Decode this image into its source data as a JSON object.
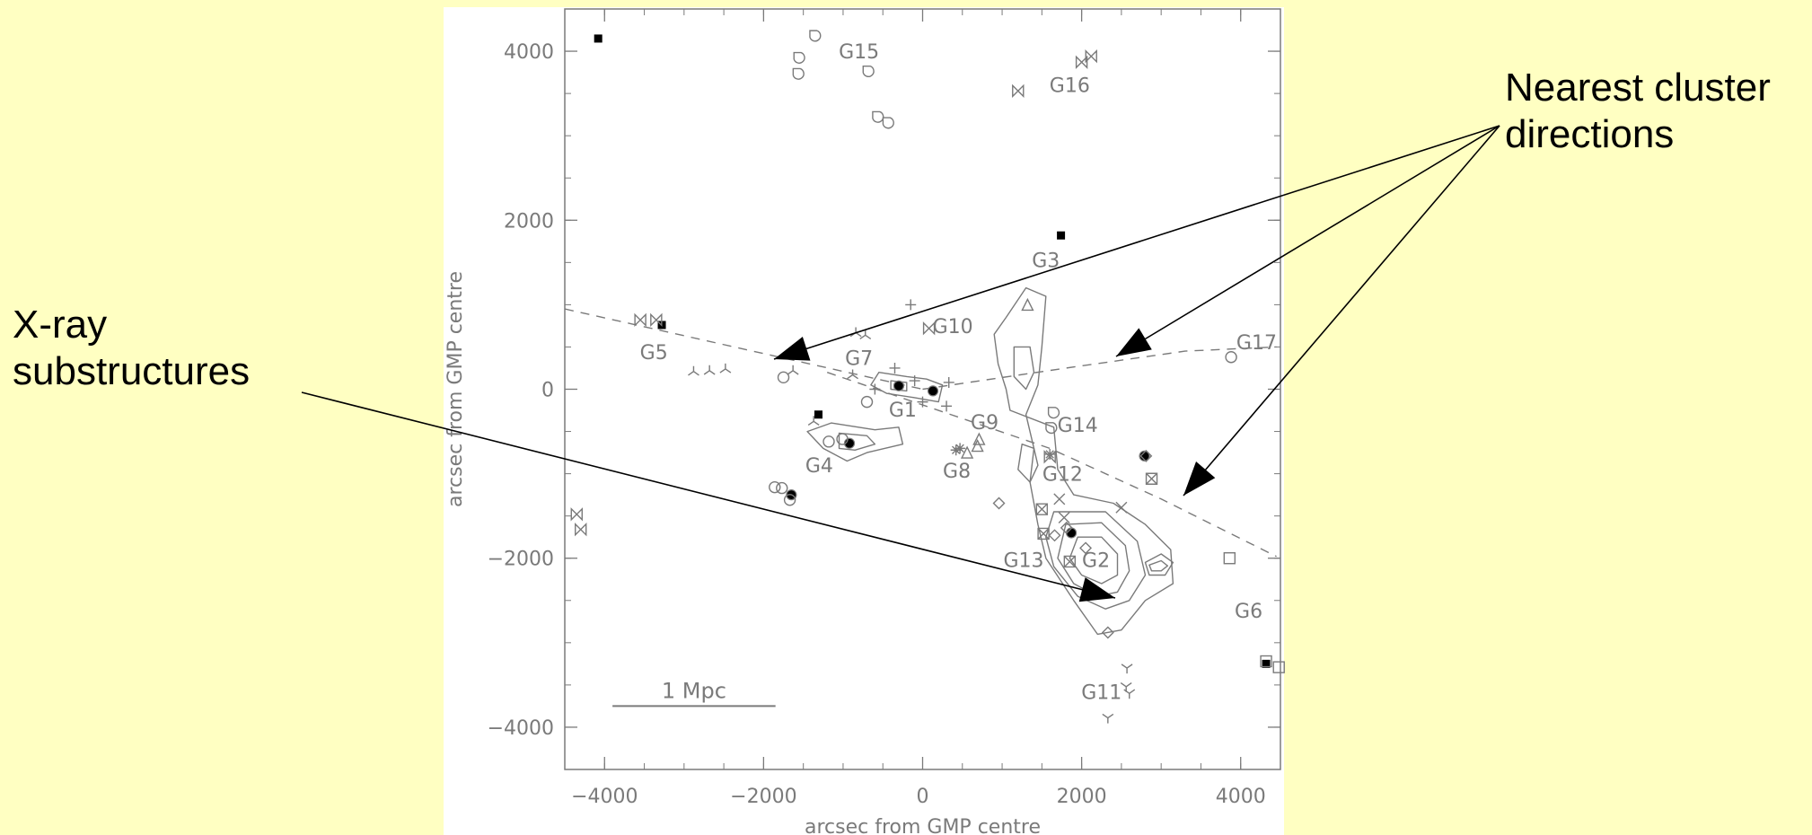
{
  "colors": {
    "background": "#ffffc2",
    "plot_bg": "#ffffff",
    "ink": "#7a7a7a",
    "arrow": "#000000"
  },
  "annotations": {
    "nearest_line1": "Nearest cluster",
    "nearest_line2": "directions",
    "xray_line1": "X-ray",
    "xray_line2": "substructures"
  },
  "chart_data": {
    "type": "scatter",
    "xlabel": "arcsec from GMP centre",
    "ylabel": "arcsec from GMP centre",
    "xlim": [
      -4500,
      4500
    ],
    "ylim": [
      -4500,
      4500
    ],
    "xticks": [
      -4000,
      -2000,
      0,
      2000,
      4000
    ],
    "yticks": [
      -4000,
      -2000,
      0,
      2000,
      4000
    ],
    "xticklabels": [
      "−4000",
      "−2000",
      "0",
      "2000",
      "4000"
    ],
    "yticklabels": [
      "−4000",
      "−2000",
      "0",
      "2000",
      "4000"
    ],
    "scale_bar": {
      "label": "1 Mpc",
      "x1": -3900,
      "x2": -1850,
      "y": -3750
    },
    "group_labels": [
      {
        "name": "G15",
        "x": -800,
        "y": 4000
      },
      {
        "name": "G16",
        "x": 1850,
        "y": 3600
      },
      {
        "name": "G3",
        "x": 1550,
        "y": 1530
      },
      {
        "name": "G10",
        "x": 380,
        "y": 750
      },
      {
        "name": "G17",
        "x": 4200,
        "y": 560
      },
      {
        "name": "G5",
        "x": -3380,
        "y": 440
      },
      {
        "name": "G7",
        "x": -800,
        "y": 370
      },
      {
        "name": "G1",
        "x": -250,
        "y": -240
      },
      {
        "name": "G9",
        "x": 780,
        "y": -390
      },
      {
        "name": "G14",
        "x": 1950,
        "y": -420
      },
      {
        "name": "G4",
        "x": -1300,
        "y": -900
      },
      {
        "name": "G8",
        "x": 430,
        "y": -960
      },
      {
        "name": "G12",
        "x": 1760,
        "y": -1000
      },
      {
        "name": "G13",
        "x": 1270,
        "y": -2020
      },
      {
        "name": "G2",
        "x": 2180,
        "y": -2020
      },
      {
        "name": "G6",
        "x": 4100,
        "y": -2620
      },
      {
        "name": "G11",
        "x": 2250,
        "y": -3580
      }
    ],
    "dashed_lines": [
      {
        "points": [
          [
            -4500,
            950
          ],
          [
            0,
            0
          ]
        ]
      },
      {
        "points": [
          [
            0,
            0
          ],
          [
            1800,
            250
          ],
          [
            3300,
            450
          ],
          [
            4450,
            500
          ]
        ]
      },
      {
        "points": [
          [
            -1200,
            200
          ],
          [
            1600,
            -700
          ],
          [
            3000,
            -1300
          ],
          [
            4450,
            -1980
          ]
        ]
      }
    ],
    "filled_squares": [
      [
        -4080,
        4150
      ],
      [
        -3280,
        760
      ],
      [
        -1310,
        -300
      ],
      [
        1740,
        1820
      ],
      [
        4320,
        -3250
      ]
    ],
    "filled_octagons": [
      [
        -300,
        40
      ],
      [
        130,
        -20
      ],
      [
        -920,
        -640
      ],
      [
        -1650,
        -1250
      ],
      [
        1870,
        -1700
      ],
      [
        2790,
        -790
      ]
    ],
    "open_circles": [
      [
        -1750,
        140
      ],
      [
        -700,
        -150
      ],
      [
        -1180,
        -620
      ],
      [
        -1010,
        -590
      ],
      [
        -1860,
        -1160
      ],
      [
        -1770,
        -1170
      ],
      [
        -1670,
        -1310
      ],
      [
        3880,
        380
      ]
    ],
    "plus": [
      [
        -350,
        250
      ],
      [
        -600,
        0
      ],
      [
        -100,
        100
      ],
      [
        300,
        -200
      ],
      [
        -150,
        1000
      ],
      [
        0,
        -150
      ],
      [
        330,
        80
      ]
    ],
    "tri_down": [
      [
        -1630,
        220
      ],
      [
        -2480,
        240
      ],
      [
        -2680,
        220
      ],
      [
        -2880,
        210
      ],
      [
        -840,
        670
      ],
      [
        -720,
        640
      ],
      [
        -880,
        170
      ],
      [
        -1370,
        -380
      ]
    ],
    "open_diamonds": [
      [
        960,
        -1350
      ],
      [
        1660,
        -1730
      ],
      [
        2050,
        -1880
      ],
      [
        2330,
        -2880
      ],
      [
        2810,
        -790
      ],
      [
        1810,
        -1640
      ]
    ],
    "bowties": [
      [
        -3550,
        820
      ],
      [
        -3350,
        820
      ],
      [
        1200,
        3530
      ],
      [
        2000,
        3870
      ],
      [
        2120,
        3940
      ],
      [
        -4350,
        -1480
      ],
      [
        -4300,
        -1660
      ],
      [
        80,
        720
      ],
      [
        1600,
        -800
      ]
    ],
    "x_marks": [
      [
        1720,
        -1300
      ],
      [
        1780,
        -1520
      ],
      [
        2500,
        -1400
      ]
    ],
    "open_triangles": [
      [
        1320,
        1000
      ],
      [
        710,
        -590
      ],
      [
        690,
        -670
      ],
      [
        560,
        -750
      ]
    ],
    "asterisks": [
      [
        470,
        -700
      ],
      [
        420,
        -720
      ],
      [
        1600,
        -770
      ]
    ],
    "boxed_x": [
      [
        1500,
        -1420
      ],
      [
        1520,
        -1710
      ],
      [
        1850,
        -2040
      ],
      [
        2880,
        -1060
      ]
    ],
    "open_squares": [
      [
        3860,
        -2000
      ],
      [
        4320,
        -3220
      ],
      [
        4480,
        -3290
      ]
    ],
    "teardrops": [
      [
        -1350,
        4180
      ],
      [
        -1550,
        3920
      ],
      [
        -1560,
        3730
      ],
      [
        -680,
        3760
      ],
      [
        -560,
        3220
      ],
      [
        -430,
        3150
      ],
      [
        1650,
        -280
      ],
      [
        1620,
        -460
      ]
    ],
    "tri_up": [
      [
        2570,
        -3300
      ],
      [
        2560,
        -3520
      ],
      [
        2600,
        -3600
      ],
      [
        2330,
        -3890
      ]
    ],
    "contours": [
      [
        [
          1050,
          850
        ],
        [
          1300,
          1200
        ],
        [
          1550,
          1100
        ],
        [
          1500,
          500
        ],
        [
          1450,
          50
        ],
        [
          1300,
          -300
        ],
        [
          1400,
          -700
        ],
        [
          1350,
          -1100
        ],
        [
          1450,
          -1600
        ],
        [
          1550,
          -2000
        ],
        [
          1900,
          -2500
        ],
        [
          2200,
          -2900
        ],
        [
          2500,
          -2850
        ],
        [
          2800,
          -2500
        ],
        [
          3150,
          -2300
        ],
        [
          3120,
          -1900
        ],
        [
          2800,
          -1600
        ],
        [
          2400,
          -1350
        ],
        [
          1900,
          -1250
        ],
        [
          1700,
          -950
        ],
        [
          1650,
          -450
        ],
        [
          1100,
          -250
        ],
        [
          1050,
          0
        ],
        [
          950,
          300
        ],
        [
          900,
          650
        ]
      ],
      [
        [
          1650,
          -1450
        ],
        [
          2300,
          -1450
        ],
        [
          2700,
          -1800
        ],
        [
          2800,
          -2200
        ],
        [
          2600,
          -2500
        ],
        [
          2300,
          -2600
        ],
        [
          1950,
          -2450
        ],
        [
          1650,
          -2100
        ],
        [
          1550,
          -1750
        ]
      ],
      [
        [
          1800,
          -1600
        ],
        [
          2250,
          -1580
        ],
        [
          2550,
          -1850
        ],
        [
          2600,
          -2150
        ],
        [
          2450,
          -2400
        ],
        [
          2200,
          -2450
        ],
        [
          1900,
          -2300
        ],
        [
          1700,
          -2000
        ]
      ],
      [
        [
          1950,
          -1750
        ],
        [
          2250,
          -1750
        ],
        [
          2450,
          -1950
        ],
        [
          2450,
          -2200
        ],
        [
          2250,
          -2300
        ],
        [
          2000,
          -2200
        ],
        [
          1850,
          -2000
        ]
      ],
      [
        [
          2800,
          -2050
        ],
        [
          3000,
          -1950
        ],
        [
          3150,
          -2050
        ],
        [
          3050,
          -2200
        ],
        [
          2850,
          -2200
        ]
      ],
      [
        [
          2850,
          -2080
        ],
        [
          3000,
          -2030
        ],
        [
          3080,
          -2090
        ],
        [
          3000,
          -2150
        ],
        [
          2880,
          -2150
        ]
      ],
      [
        [
          1150,
          500
        ],
        [
          1350,
          500
        ],
        [
          1400,
          200
        ],
        [
          1300,
          0
        ],
        [
          1150,
          150
        ]
      ],
      [
        [
          1250,
          -650
        ],
        [
          1400,
          -700
        ],
        [
          1450,
          -900
        ],
        [
          1350,
          -1100
        ],
        [
          1200,
          -950
        ]
      ],
      [
        [
          -1150,
          -400
        ],
        [
          -600,
          -480
        ],
        [
          -300,
          -450
        ],
        [
          -250,
          -650
        ],
        [
          -700,
          -750
        ],
        [
          -950,
          -850
        ],
        [
          -1250,
          -700
        ],
        [
          -1450,
          -500
        ]
      ],
      [
        [
          -1050,
          -520
        ],
        [
          -700,
          -550
        ],
        [
          -600,
          -650
        ],
        [
          -850,
          -720
        ],
        [
          -1050,
          -700
        ]
      ],
      [
        [
          -550,
          200
        ],
        [
          -200,
          150
        ],
        [
          50,
          120
        ],
        [
          250,
          50
        ],
        [
          200,
          -150
        ],
        [
          -100,
          -100
        ],
        [
          -450,
          -50
        ],
        [
          -650,
          50
        ]
      ],
      [
        [
          -400,
          100
        ],
        [
          -200,
          80
        ],
        [
          -200,
          -20
        ],
        [
          -400,
          0
        ]
      ]
    ],
    "arrows": [
      {
        "from": [
          1670,
          140
        ],
        "to": [
          862,
          400
        ]
      },
      {
        "from": [
          1670,
          140
        ],
        "to": [
          1243,
          397
        ]
      },
      {
        "from": [
          1670,
          140
        ],
        "to": [
          1318,
          552
        ]
      },
      {
        "from": [
          336,
          437
        ],
        "to": [
          1242,
          666
        ]
      }
    ]
  }
}
